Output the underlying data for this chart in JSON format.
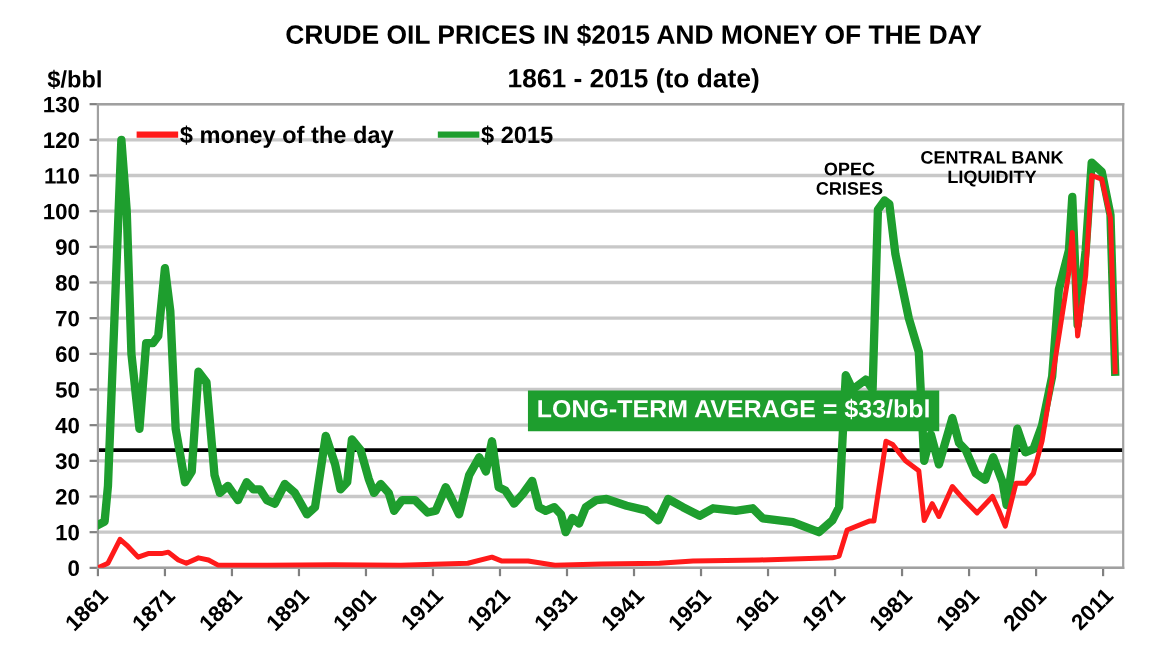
{
  "chart_data": {
    "type": "line",
    "title": "CRUDE OIL PRICES IN $2015 AND MONEY OF THE DAY",
    "subtitle": "1861 - 2015 (to date)",
    "ylabel": "$/bbl",
    "series": [
      {
        "name": "$ money of the day",
        "color": "#ff1a1a",
        "x": [
          1861,
          1862.5,
          1864.3,
          1865.5,
          1867,
          1868.5,
          1870.5,
          1871.5,
          1873,
          1874.2,
          1876,
          1877.5,
          1879,
          1886.3,
          1896.2,
          1906.2,
          1916.2,
          1919.8,
          1921.3,
          1925.2,
          1929.2,
          1936.1,
          1944.8,
          1949.8,
          1959.7,
          1970.6,
          1971.6,
          1972.8,
          1976.1,
          1976.8,
          1978.6,
          1979.6,
          1981.5,
          1983.5,
          1984.3,
          1985.5,
          1986.5,
          1988.5,
          1990,
          1992.2,
          1994.5,
          1995.4,
          1996.4,
          1998,
          1999.4,
          2000.6,
          2001.9,
          2003.4,
          2005.9,
          2006.4,
          2007.2,
          2008.4,
          2009.3,
          2010.8,
          2012.1,
          2012.8
        ],
        "values": [
          0,
          1.3,
          8,
          6,
          3,
          4,
          4,
          4.4,
          2.2,
          1.3,
          2.8,
          2.2,
          0.7,
          0.7,
          0.9,
          0.7,
          1.3,
          3,
          1.9,
          1.9,
          0.7,
          1.1,
          1.3,
          1.9,
          2.2,
          2.8,
          3.3,
          10.6,
          13.1,
          13.1,
          35.5,
          34.6,
          30,
          27.2,
          13.3,
          18,
          14.4,
          22.8,
          19.6,
          15.4,
          20,
          16.3,
          11.7,
          23.7,
          23.7,
          26.5,
          35.6,
          53,
          83,
          94,
          65,
          82,
          110,
          109,
          98,
          55
        ]
      },
      {
        "name": "$ 2015",
        "color": "#1e9e2e",
        "x": [
          1861,
          1862,
          1862.5,
          1864.5,
          1865.3,
          1866,
          1867.2,
          1868.2,
          1869.2,
          1870,
          1871,
          1871.8,
          1872.6,
          1874,
          1875,
          1876,
          1877.2,
          1878.4,
          1879.2,
          1880.4,
          1881.9,
          1883.2,
          1884.2,
          1885.2,
          1886.2,
          1887.4,
          1888.9,
          1890.4,
          1892.2,
          1893.4,
          1895,
          1896.4,
          1897.2,
          1898.2,
          1898.9,
          1900.2,
          1901.4,
          1902.2,
          1903.2,
          1904.4,
          1905.2,
          1906.4,
          1908.3,
          1910.2,
          1911.4,
          1912.9,
          1913.6,
          1914.9,
          1916.4,
          1917.9,
          1918.9,
          1919.8,
          1920.8,
          1921.8,
          1923.1,
          1924.4,
          1925.8,
          1926.8,
          1927.8,
          1929.1,
          1930.1,
          1930.8,
          1931.8,
          1932.8,
          1933.8,
          1935.4,
          1936.9,
          1939.9,
          1942.8,
          1944.6,
          1946.1,
          1948.3,
          1950.8,
          1952.8,
          1956.2,
          1958.7,
          1960.2,
          1964.7,
          1968.6,
          1970.6,
          1971.6,
          1972.6,
          1973.6,
          1975.6,
          1976.6,
          1977.4,
          1978.4,
          1979.1,
          1980,
          1981,
          1982,
          1983.5,
          1984.3,
          1985.3,
          1986.5,
          1988.5,
          1989.5,
          1990.5,
          1992,
          1993.4,
          1994.6,
          1996,
          1996.6,
          1998.2,
          1999.4,
          2000.6,
          2001.9,
          2003.4,
          2004.4,
          2005.9,
          2006.4,
          2007.2,
          2008.4,
          2009.3,
          2010.8,
          2012.1,
          2012.8
        ],
        "values": [
          12,
          13,
          23,
          120,
          100,
          60,
          39,
          63,
          63,
          65,
          84,
          72,
          39,
          24,
          27,
          55,
          52,
          26,
          21,
          23,
          19,
          24,
          22,
          22,
          19,
          18,
          23.5,
          21,
          15,
          17,
          37,
          29,
          22,
          24,
          36,
          33,
          25,
          21,
          23.5,
          21,
          16,
          19,
          19,
          15.5,
          16,
          22.6,
          20,
          15,
          26,
          31,
          27,
          35.5,
          22.6,
          21.7,
          18,
          20.7,
          24.4,
          17,
          16,
          17,
          15,
          10,
          14,
          12.4,
          17,
          19,
          19.3,
          17.4,
          16.1,
          13.3,
          19.3,
          17,
          14.6,
          16.7,
          16,
          16.7,
          13.9,
          12.8,
          10,
          13.3,
          17,
          54,
          50,
          52.8,
          50,
          100.4,
          103,
          102,
          88,
          79,
          70,
          60.5,
          30,
          37.4,
          29,
          42,
          35,
          33,
          26.5,
          24.7,
          31,
          24,
          17.6,
          39,
          32.4,
          33.3,
          40,
          53.7,
          78,
          89,
          104,
          68,
          89,
          113.6,
          111,
          99,
          55
        ]
      }
    ],
    "xlim": [
      1861,
      2014
    ],
    "xticks": [
      1861,
      1871,
      1881,
      1891,
      1901,
      1911,
      1921,
      1931,
      1941,
      1951,
      1961,
      1971,
      1981,
      1991,
      2001,
      2011
    ],
    "ylim": [
      0,
      130
    ],
    "yticks": [
      0,
      10,
      20,
      30,
      40,
      50,
      60,
      70,
      80,
      90,
      100,
      110,
      120,
      130
    ],
    "grid": "y",
    "legend": "top left",
    "marker": "none",
    "line_style": "solid",
    "ref_lines": [
      {
        "axis": "y",
        "value": 33,
        "label": "LONG-TERM AVERAGE = $33/bbl",
        "color": "#000000"
      }
    ],
    "annotations": [
      "OPEC\nCRISES",
      "CENTRAL BANK\nLIQUIDITY"
    ]
  }
}
